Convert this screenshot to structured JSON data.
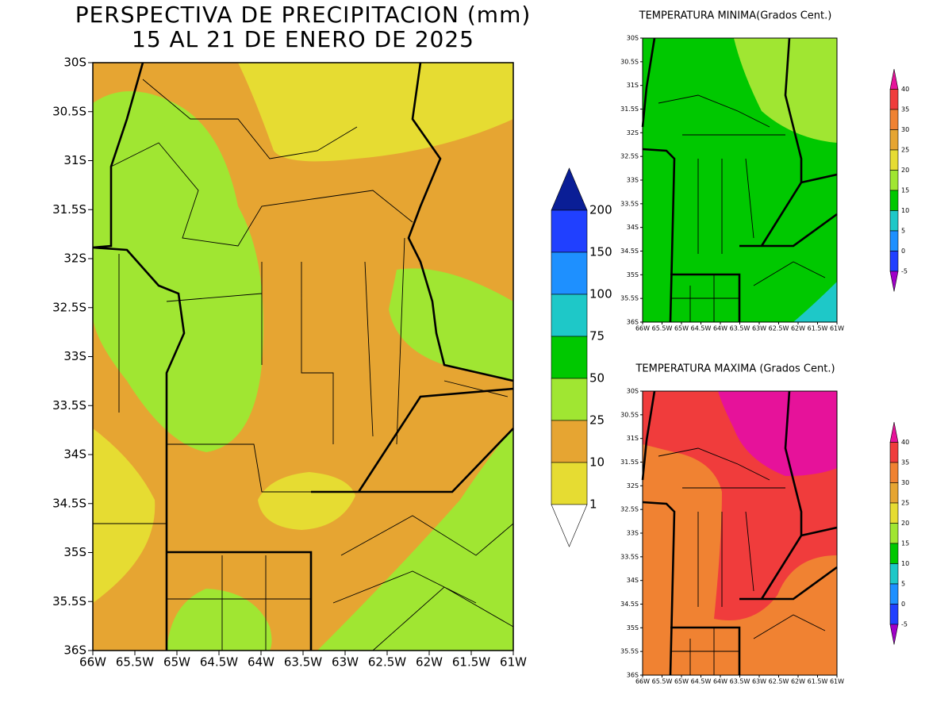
{
  "main_map": {
    "title": [
      "PERSPECTIVA DE PRECIPITACION (mm)",
      "15 AL 21 DE ENERO DE 2025"
    ],
    "lat_labels": [
      "30S",
      "30.5S",
      "31S",
      "31.5S",
      "32S",
      "32.5S",
      "33S",
      "33.5S",
      "34S",
      "34.5S",
      "35S",
      "35.5S",
      "36S"
    ],
    "lon_labels": [
      "66W",
      "65.5W",
      "65W",
      "64.5W",
      "64W",
      "63.5W",
      "63W",
      "62.5W",
      "62W",
      "61.5W",
      "61W"
    ],
    "legend": [
      "200",
      "150",
      "100",
      "75",
      "50",
      "25",
      "10",
      "1"
    ]
  },
  "min_map": {
    "title": "TEMPERATURA MINIMA(Grados Cent.)",
    "lat_labels": [
      "30S",
      "30.5S",
      "31S",
      "31.5S",
      "32S",
      "32.5S",
      "33S",
      "33.5S",
      "34S",
      "34.5S",
      "35S",
      "35.5S",
      "36S"
    ],
    "lon_labels": [
      "66W",
      "65.5W",
      "65W",
      "64.5W",
      "64W",
      "63.5W",
      "63W",
      "62.5W",
      "62W",
      "61.5W",
      "61W"
    ],
    "legend": [
      "40",
      "35",
      "30",
      "25",
      "20",
      "15",
      "10",
      "5",
      "0",
      "-5"
    ]
  },
  "max_map": {
    "title": "TEMPERATURA MAXIMA (Grados Cent.)",
    "lat_labels": [
      "30S",
      "30.5S",
      "31S",
      "31.5S",
      "32S",
      "32.5S",
      "33S",
      "33.5S",
      "34S",
      "34.5S",
      "35S",
      "35.5S",
      "36S"
    ],
    "lon_labels": [
      "66W",
      "65.5W",
      "65W",
      "64.5W",
      "64W",
      "63.5W",
      "63W",
      "62.5W",
      "62W",
      "61.5W",
      "61W"
    ],
    "legend": [
      "40",
      "35",
      "30",
      "25",
      "20",
      "15",
      "10",
      "5",
      "0",
      "-5"
    ]
  }
}
